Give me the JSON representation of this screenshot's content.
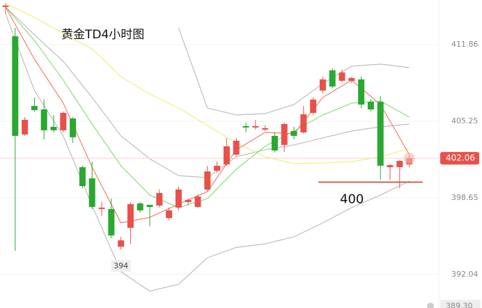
{
  "chart_data": {
    "type": "candlestick",
    "title": "黄金TD4小时图",
    "up_color": "#e8514a",
    "down_color": "#2aa830",
    "open": [
      415.11,
      412.58,
      404.11,
      406.57,
      406.27,
      404.77,
      404.47,
      405.49,
      401.29,
      400.32,
      397.68,
      397.68,
      394.43,
      396.06,
      398.16,
      398.04,
      397.98,
      396.9,
      397.8,
      398.28,
      397.86,
      399.36,
      400.98,
      401.53,
      402.37,
      404.83,
      404.71,
      404.53,
      403.99,
      403.21,
      404.41,
      404.29,
      405.97,
      407.9,
      409.64,
      408.74,
      408.74,
      408.86,
      406.93,
      406.93,
      401.29,
      401.29,
      401.53
    ],
    "close": [
      415.23,
      403.99,
      405.37,
      406.21,
      404.47,
      404.47,
      405.97,
      403.87,
      399.66,
      397.86,
      397.8,
      395.4,
      394.98,
      398.1,
      397.56,
      397.86,
      399.06,
      397.56,
      399.36,
      398.46,
      398.76,
      400.92,
      401.41,
      403.09,
      403.57,
      404.71,
      404.83,
      404.65,
      402.73,
      405.01,
      403.99,
      405.85,
      407.12,
      408.86,
      408.25,
      409.46,
      408.98,
      406.69,
      406.27,
      401.41,
      401.47,
      401.83,
      402.06
    ],
    "high": [
      415.41,
      413.31,
      405.61,
      407.3,
      407.12,
      405.79,
      406.09,
      405.61,
      401.41,
      401.77,
      398.28,
      398.58,
      395.28,
      398.28,
      398.28,
      398.04,
      399.36,
      397.8,
      399.6,
      398.58,
      398.94,
      401.41,
      401.77,
      403.81,
      403.81,
      405.13,
      405.37,
      404.89,
      404.29,
      405.13,
      404.77,
      406.57,
      407.3,
      409.1,
      409.82,
      409.7,
      409.1,
      409.1,
      407.17,
      407.41,
      401.53,
      401.89,
      402.37
    ],
    "low": [
      414.51,
      394.07,
      403.99,
      406.09,
      403.69,
      404.29,
      404.29,
      403.39,
      399.48,
      397.68,
      397.08,
      395.16,
      394.19,
      394.67,
      397.38,
      396.18,
      397.8,
      396.72,
      397.56,
      398.04,
      397.8,
      399.24,
      400.81,
      401.41,
      402.25,
      404.29,
      404.53,
      404.41,
      402.55,
      402.61,
      403.69,
      404.17,
      405.79,
      407.66,
      408.07,
      408.62,
      408.56,
      406.39,
      406.09,
      400.2,
      400.2,
      399.48,
      401.29
    ],
    "lines": {
      "x": [
        0,
        3,
        6,
        9,
        12,
        15,
        18,
        21,
        24,
        27,
        30,
        33,
        36,
        39,
        42
      ],
      "series": [
        {
          "color": "#bdbdbd",
          "values": [
            null,
            null,
            null,
            null,
            null,
            null,
            413.31,
            406.39,
            405.79,
            405.91,
            406.69,
            408.5,
            410.0,
            410.18,
            409.88
          ]
        },
        {
          "color": "#bdbdbd",
          "values": [
            415.11,
            412.71,
            410.42,
            407.3,
            403.99,
            402.01,
            400.56,
            400.38,
            402.19,
            402.79,
            403.21,
            403.81,
            404.41,
            404.77,
            405.01
          ]
        },
        {
          "color": "#bdbdbd",
          "values": [
            414.51,
            407.9,
            403.99,
            397.98,
            392.27,
            390.59,
            391.19,
            393.47,
            394.37,
            394.67,
            395.28,
            396.48,
            397.8,
            398.88,
            400.08
          ]
        },
        {
          "color": "#f3ef7a",
          "values": [
            415.41,
            414.21,
            412.82,
            411.5,
            409.1,
            407.6,
            406.39,
            404.89,
            403.39,
            402.19,
            401.59,
            401.65,
            401.77,
            402.19,
            402.91
          ]
        },
        {
          "color": "#8fdc7e",
          "values": [
            415.11,
            412.22,
            408.8,
            405.01,
            401.41,
            398.88,
            397.8,
            398.58,
            401.11,
            403.09,
            404.41,
            405.79,
            406.81,
            406.99,
            405.61
          ]
        },
        {
          "color": "#f08070",
          "values": [
            415.11,
            410.6,
            406.81,
            401.29,
            396.48,
            396.96,
            398.1,
            399.18,
            402.79,
            404.29,
            404.17,
            407.3,
            408.8,
            406.69,
            402.37
          ]
        }
      ]
    },
    "ylim": [
      389.14,
      415.71
    ],
    "yticks": [
      411.86,
      405.25,
      398.65,
      392.04
    ],
    "bottom_label": {
      "value": 389.3,
      "label": "389.30"
    },
    "current_price": 402.06,
    "support_level": 400,
    "low_marker": "394"
  }
}
